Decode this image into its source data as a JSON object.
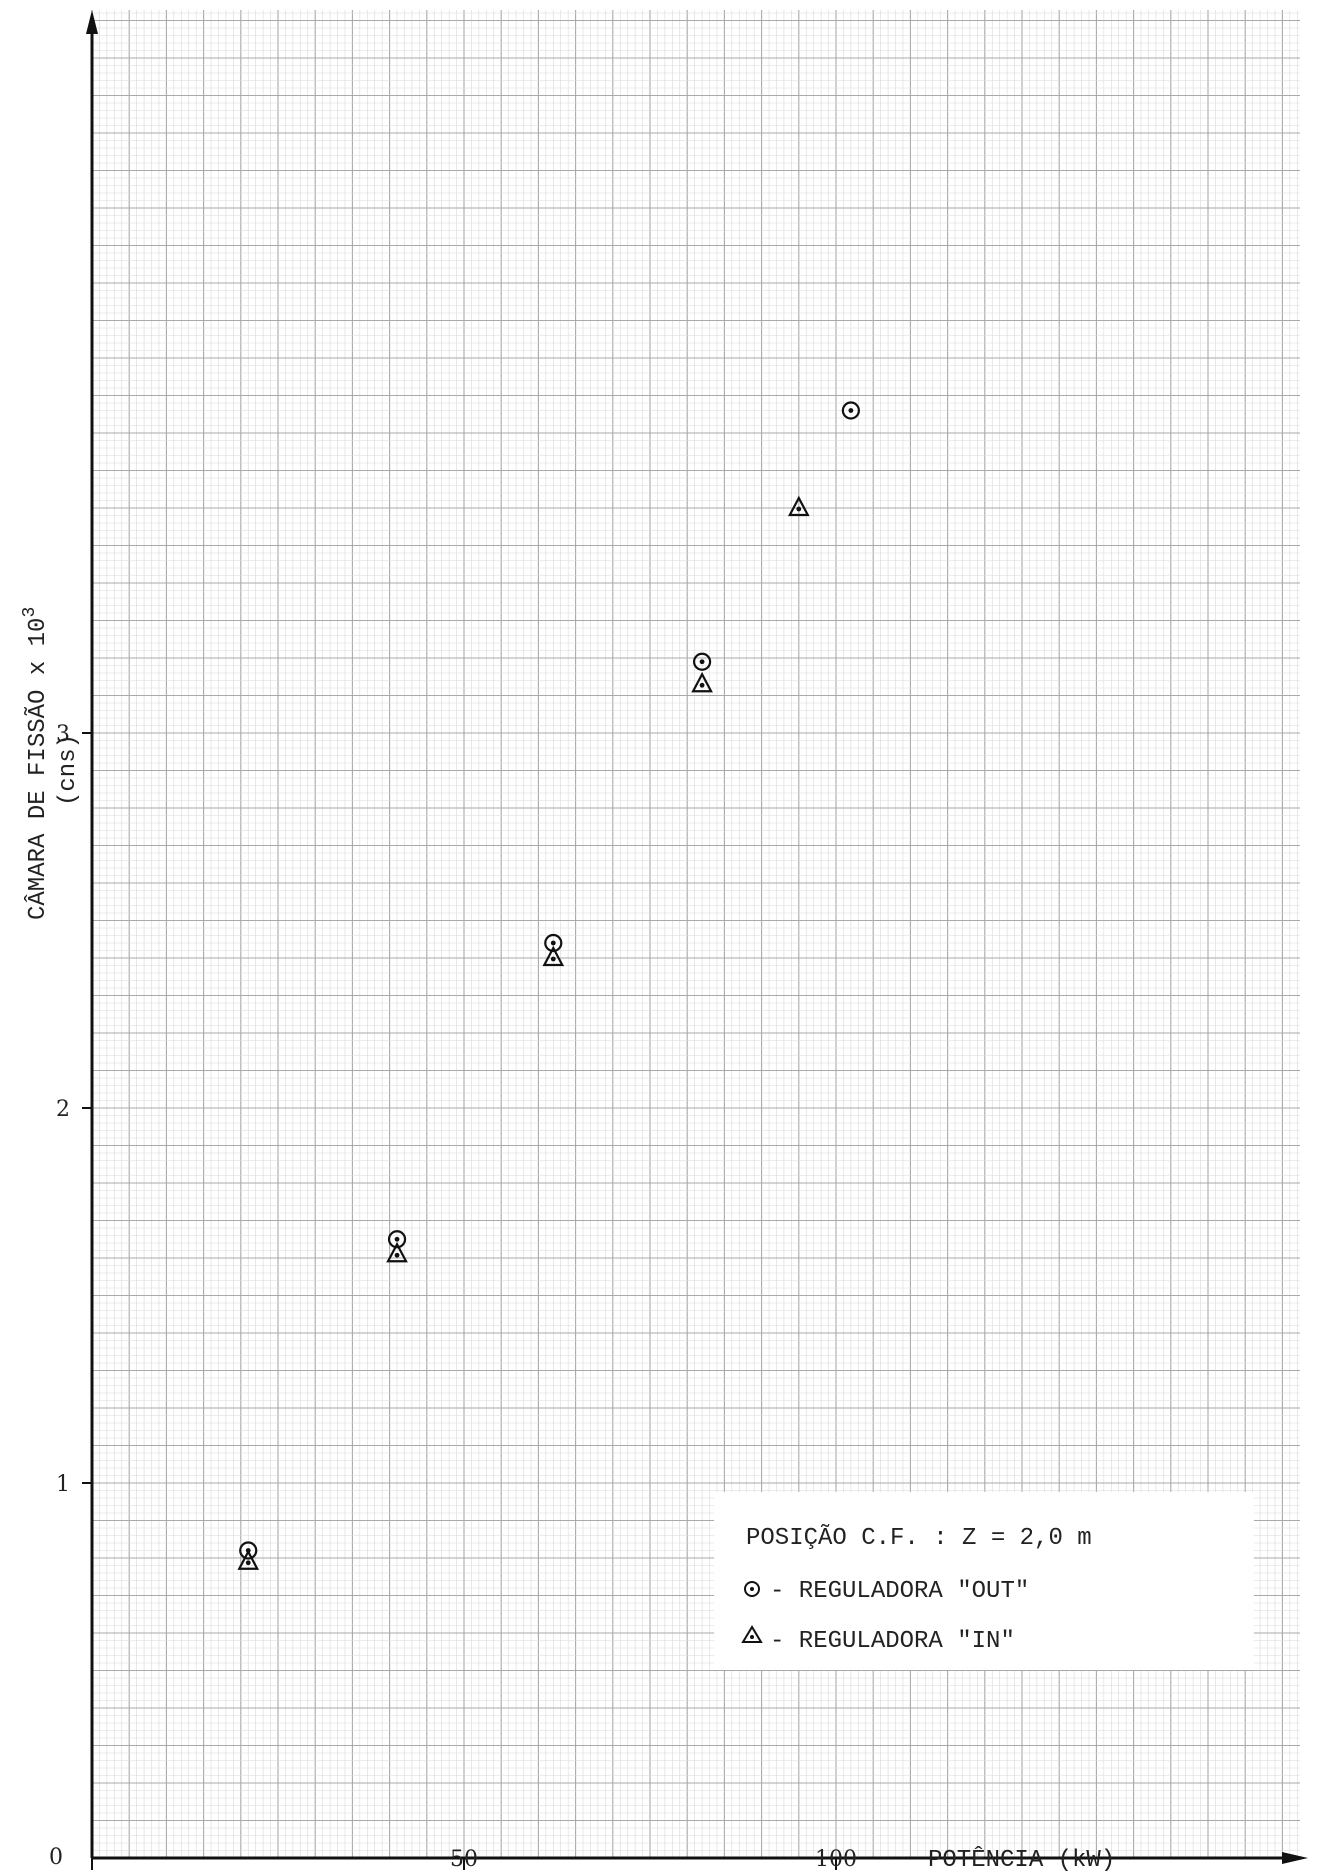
{
  "chart_data": {
    "type": "scatter",
    "xlabel": "POTÊNCIA (kW)",
    "ylabel": "CÂMARA DE FISSÃO x 10",
    "ylabel_exponent": "3",
    "ylabel_unit": "(cns)",
    "xlim": [
      0,
      165
    ],
    "ylim": [
      0,
      5
    ],
    "x_ticks": [
      {
        "value": 0,
        "label": "0"
      },
      {
        "value": 50,
        "label": "50"
      },
      {
        "value": 100,
        "label": "100"
      }
    ],
    "y_ticks": [
      {
        "value": 1,
        "label": "1"
      },
      {
        "value": 2,
        "label": "2"
      },
      {
        "value": 3,
        "label": "3"
      }
    ],
    "grid": true,
    "legend_position": "bottom-right",
    "legend_title": "POSIÇÃO C.F. : Z = 2,0 m",
    "series": [
      {
        "name": "REGULADORA \"OUT\"",
        "marker": "circle-dot",
        "legend_label": "- REGULADORA \"OUT\"",
        "x": [
          21,
          41,
          62,
          82,
          102
        ],
        "y": [
          0.82,
          1.65,
          2.44,
          3.19,
          3.86
        ]
      },
      {
        "name": "REGULADORA \"IN\"",
        "marker": "triangle",
        "legend_label": "- REGULADORA \"IN\"",
        "x": [
          21,
          41,
          62,
          82,
          95
        ],
        "y": [
          0.79,
          1.61,
          2.4,
          3.13,
          3.6
        ]
      }
    ]
  }
}
